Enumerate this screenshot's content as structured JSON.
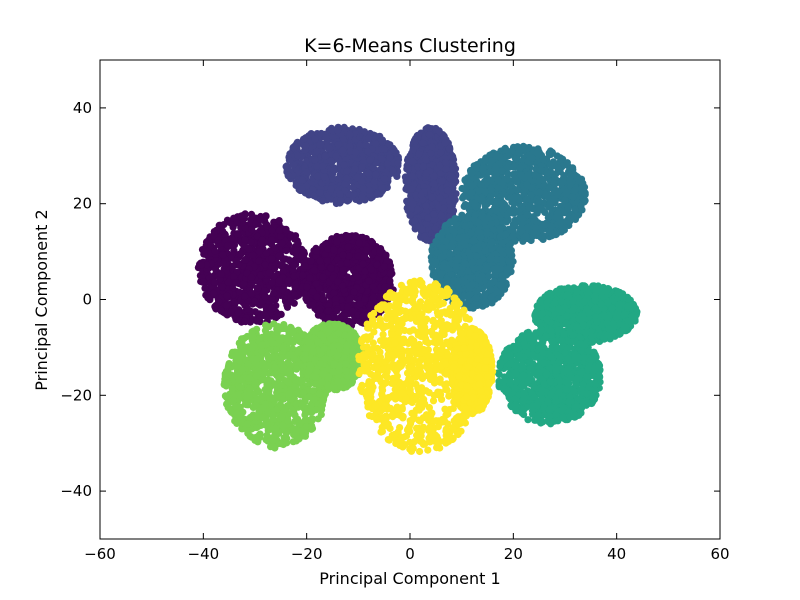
{
  "chart_data": {
    "type": "scatter",
    "title": "K=6-Means Clustering",
    "xlabel": "Principal Component 1",
    "ylabel": "Principal Component 2",
    "xlim": [
      -60,
      60
    ],
    "ylim": [
      -50,
      50
    ],
    "xticks": [
      -60,
      -40,
      -20,
      0,
      20,
      40,
      60
    ],
    "yticks": [
      -40,
      -20,
      0,
      20,
      40
    ],
    "xtick_labels": [
      "−60",
      "−40",
      "−20",
      "0",
      "20",
      "40",
      "60"
    ],
    "ytick_labels": [
      "−40",
      "−20",
      "0",
      "20",
      "40"
    ],
    "grid": false,
    "legend": "none",
    "colors": [
      "#440154",
      "#414487",
      "#2a788e",
      "#22a884",
      "#7ad151",
      "#fde725"
    ],
    "clusters": [
      {
        "color": "#440154",
        "regions": [
          {
            "center": [
              -30.5,
              6.5
            ],
            "radius": [
              10.5,
              11.5
            ]
          },
          {
            "center": [
              -12,
              4
            ],
            "radius": [
              9,
              9.5
            ]
          }
        ]
      },
      {
        "color": "#414487",
        "regions": [
          {
            "center": [
              -13,
              28
            ],
            "radius": [
              11,
              8
            ]
          },
          {
            "center": [
              4,
              24
            ],
            "radius": [
              5,
              12
            ]
          }
        ]
      },
      {
        "color": "#2a788e",
        "regions": [
          {
            "center": [
              22,
              22
            ],
            "radius": [
              12,
              10
            ]
          },
          {
            "center": [
              12,
              8
            ],
            "radius": [
              8,
              10
            ]
          }
        ]
      },
      {
        "color": "#22a884",
        "regions": [
          {
            "center": [
              34,
              -3
            ],
            "radius": [
              10,
              6
            ]
          },
          {
            "center": [
              27,
              -16
            ],
            "radius": [
              10,
              10
            ]
          }
        ]
      },
      {
        "color": "#7ad151",
        "regions": [
          {
            "center": [
              -26,
              -18
            ],
            "radius": [
              10,
              13
            ]
          },
          {
            "center": [
              -15,
              -12
            ],
            "radius": [
              6,
              7
            ]
          }
        ]
      },
      {
        "color": "#fde725",
        "regions": [
          {
            "center": [
              2,
              -14
            ],
            "radius": [
              12,
              18
            ]
          },
          {
            "center": [
              12,
              -15
            ],
            "radius": [
              4,
              9
            ]
          }
        ]
      }
    ]
  }
}
